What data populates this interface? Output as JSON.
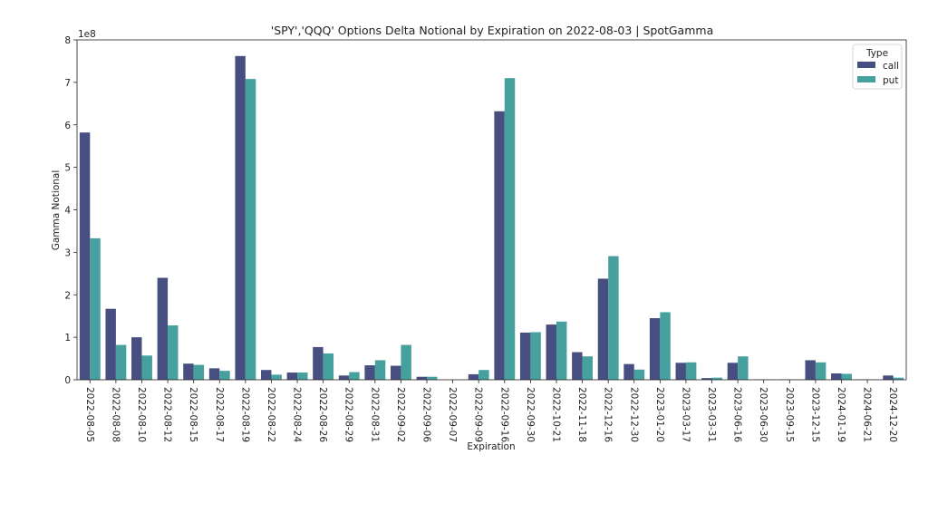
{
  "chart_data": {
    "type": "bar",
    "title": "'SPY','QQQ' Options Delta Notional by Expiration on 2022-08-03 | SpotGamma",
    "xlabel": "Expiration",
    "ylabel": "Gamma Notional",
    "y_scale_label": "1e8",
    "ylim": [
      0,
      8
    ],
    "yticks": [
      "0",
      "1",
      "2",
      "3",
      "4",
      "5",
      "6",
      "7",
      "8"
    ],
    "legend": {
      "title": "Type",
      "position": "top-right"
    },
    "categories": [
      "2022-08-05",
      "2022-08-08",
      "2022-08-10",
      "2022-08-12",
      "2022-08-15",
      "2022-08-17",
      "2022-08-19",
      "2022-08-22",
      "2022-08-24",
      "2022-08-26",
      "2022-08-29",
      "2022-08-31",
      "2022-09-02",
      "2022-09-06",
      "2022-09-07",
      "2022-09-09",
      "2022-09-16",
      "2022-09-30",
      "2022-10-21",
      "2022-11-18",
      "2022-12-16",
      "2022-12-30",
      "2023-01-20",
      "2023-03-17",
      "2023-03-31",
      "2023-06-16",
      "2023-06-30",
      "2023-09-15",
      "2023-12-15",
      "2024-01-19",
      "2024-06-21",
      "2024-12-20"
    ],
    "series": [
      {
        "name": "call",
        "color": "#464f80",
        "values": [
          5.82,
          1.67,
          1.0,
          2.4,
          0.38,
          0.27,
          7.62,
          0.23,
          0.17,
          0.77,
          0.1,
          0.34,
          0.33,
          0.07,
          0.0,
          0.13,
          6.32,
          1.11,
          1.3,
          0.65,
          2.38,
          0.37,
          1.45,
          0.4,
          0.04,
          0.4,
          0.01,
          0.01,
          0.46,
          0.15,
          0.01,
          0.1
        ]
      },
      {
        "name": "put",
        "color": "#46a09e",
        "values": [
          3.33,
          0.82,
          0.57,
          1.28,
          0.35,
          0.21,
          7.08,
          0.12,
          0.17,
          0.62,
          0.18,
          0.46,
          0.82,
          0.07,
          0.0,
          0.23,
          7.1,
          1.12,
          1.37,
          0.55,
          2.91,
          0.24,
          1.59,
          0.41,
          0.05,
          0.55,
          0.01,
          0.01,
          0.41,
          0.14,
          0.01,
          0.05
        ]
      }
    ]
  }
}
